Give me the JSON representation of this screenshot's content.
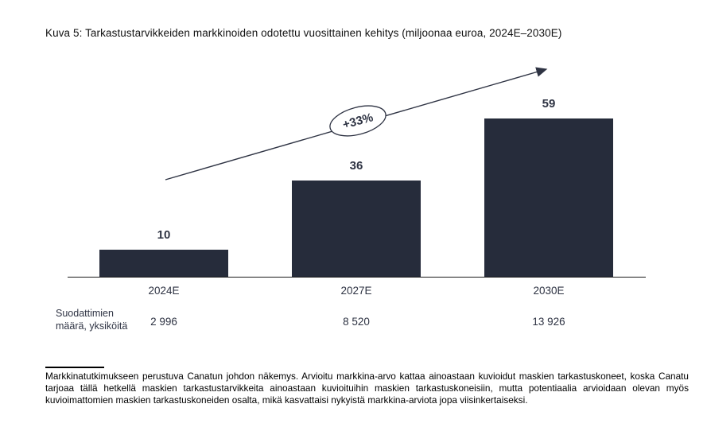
{
  "page": {
    "title": "Kuva 5: Tarkastustarvikkeiden markkinoiden odotettu vuosittainen kehitys (miljoonaa euroa, 2024E–2030E)"
  },
  "chart_data": {
    "type": "bar",
    "title": "Kuva 5: Tarkastustarvikkeiden markkinoiden odotettu vuosittainen kehitys (miljoonaa euroa, 2024E–2030E)",
    "categories": [
      "2024E",
      "2027E",
      "2030E"
    ],
    "values": [
      10,
      36,
      59
    ],
    "unit": "miljoonaa euroa",
    "ylim": [
      0,
      65
    ],
    "grid": false,
    "legend": "none",
    "annotations": {
      "growth_badge": "+33%",
      "trend": "ascending arrow across bar tops"
    },
    "secondary_row": {
      "label_line1": "Suodattimien",
      "label_line2": "määrä, yksiköitä",
      "values": [
        "2 996",
        "8 520",
        "13 926"
      ]
    },
    "colors": {
      "bar": "#262c3b",
      "text": "#2e3343",
      "axis": "#1a1a1a"
    }
  },
  "footnote": {
    "text": "Markkinatutkimukseen perustuva Canatun johdon näkemys. Arvioitu markkina-arvo kattaa ainoastaan kuvioidut maskien tarkastuskoneet, koska Canatu tarjoaa tällä hetkellä maskien tarkastustarvikkeita ainoastaan kuvioituihin maskien tarkastuskoneisiin, mutta potentiaalia arvioidaan olevan myös kuvioimattomien maskien tarkastuskoneiden osalta, mikä kasvattaisi nykyistä markkina-arviota jopa viisinkertaiseksi."
  }
}
